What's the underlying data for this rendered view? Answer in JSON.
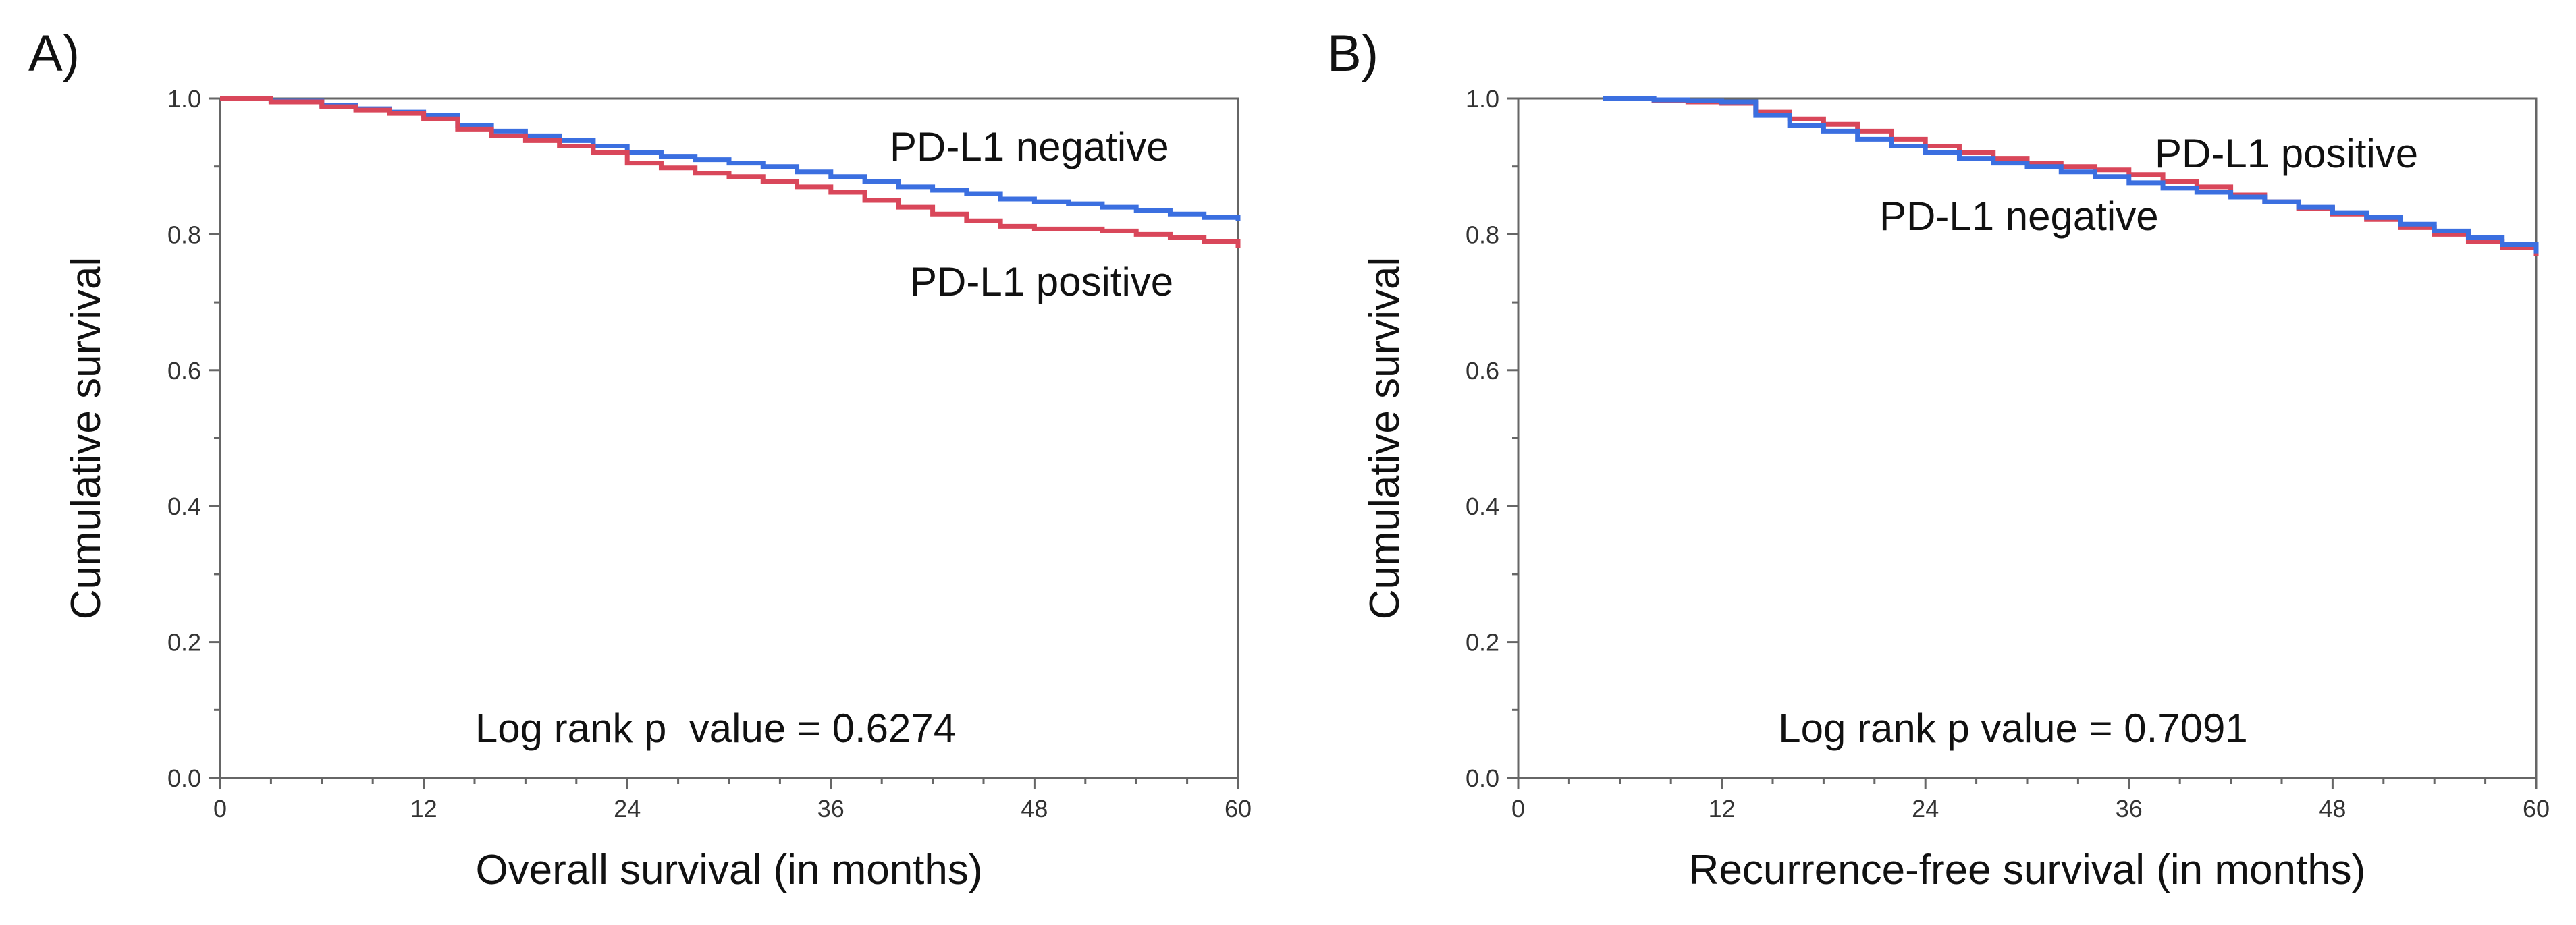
{
  "chart_data": [
    {
      "type": "line",
      "subtype": "kaplan-meier step",
      "panel_label": "A)",
      "xlabel": "Overall survival (in months)",
      "ylabel": "Cumulative survival",
      "xlim": [
        0,
        60
      ],
      "ylim": [
        0.0,
        1.0
      ],
      "x_ticks": [
        0,
        12,
        24,
        36,
        48,
        60
      ],
      "x_tick_labels": [
        "0",
        "12",
        "24",
        "36",
        "48",
        "60"
      ],
      "y_ticks": [
        0.0,
        0.2,
        0.4,
        0.6,
        0.8,
        1.0
      ],
      "y_tick_labels": [
        "0.0",
        "0.2",
        "0.4",
        "0.6",
        "0.8",
        "1.0"
      ],
      "annotation": "Log rank p  value = 0.6274",
      "series": [
        {
          "name": "PD-L1 negative",
          "label": "PD-L1 negative",
          "color": "#3b6fe0",
          "x": [
            0,
            3,
            6,
            8,
            10,
            12,
            14,
            16,
            18,
            20,
            22,
            24,
            26,
            28,
            30,
            32,
            34,
            36,
            38,
            40,
            42,
            44,
            46,
            48,
            50,
            52,
            54,
            56,
            58,
            60
          ],
          "y": [
            1.0,
            0.997,
            0.99,
            0.985,
            0.98,
            0.975,
            0.96,
            0.952,
            0.945,
            0.938,
            0.93,
            0.92,
            0.915,
            0.91,
            0.905,
            0.9,
            0.892,
            0.885,
            0.878,
            0.87,
            0.865,
            0.86,
            0.852,
            0.848,
            0.845,
            0.84,
            0.835,
            0.83,
            0.825,
            0.82
          ]
        },
        {
          "name": "PD-L1 positive",
          "label": "PD-L1 positive",
          "color": "#d9475a",
          "x": [
            0,
            3,
            6,
            8,
            10,
            12,
            14,
            16,
            18,
            20,
            22,
            24,
            26,
            28,
            30,
            32,
            34,
            36,
            38,
            40,
            42,
            44,
            46,
            48,
            50,
            52,
            54,
            56,
            58,
            60
          ],
          "y": [
            1.0,
            0.995,
            0.988,
            0.983,
            0.978,
            0.97,
            0.955,
            0.945,
            0.938,
            0.93,
            0.92,
            0.905,
            0.898,
            0.89,
            0.885,
            0.878,
            0.87,
            0.862,
            0.85,
            0.84,
            0.83,
            0.82,
            0.812,
            0.808,
            0.808,
            0.805,
            0.8,
            0.795,
            0.79,
            0.78
          ]
        }
      ]
    },
    {
      "type": "line",
      "subtype": "kaplan-meier step",
      "panel_label": "B)",
      "xlabel": "Recurrence-free survival (in months)",
      "ylabel": "Cumulative survival",
      "xlim": [
        0,
        60
      ],
      "ylim": [
        0.0,
        1.0
      ],
      "x_ticks": [
        0,
        12,
        24,
        36,
        48,
        60
      ],
      "x_tick_labels": [
        "0",
        "12",
        "24",
        "36",
        "48",
        "60"
      ],
      "y_ticks": [
        0.0,
        0.2,
        0.4,
        0.6,
        0.8,
        1.0
      ],
      "y_tick_labels": [
        "0.0",
        "0.2",
        "0.4",
        "0.6",
        "0.8",
        "1.0"
      ],
      "annotation": "Log rank p value = 0.7091",
      "series": [
        {
          "name": "PD-L1 positive",
          "label": "PD-L1 positive",
          "color": "#d9475a",
          "x": [
            5,
            8,
            10,
            12,
            14,
            16,
            18,
            20,
            22,
            24,
            26,
            28,
            30,
            32,
            34,
            36,
            38,
            40,
            42,
            44,
            46,
            48,
            50,
            52,
            54,
            56,
            58,
            60
          ],
          "y": [
            1.0,
            0.997,
            0.995,
            0.993,
            0.98,
            0.97,
            0.962,
            0.952,
            0.94,
            0.93,
            0.92,
            0.912,
            0.905,
            0.9,
            0.895,
            0.888,
            0.878,
            0.87,
            0.858,
            0.848,
            0.838,
            0.83,
            0.822,
            0.81,
            0.8,
            0.79,
            0.78,
            0.768
          ]
        },
        {
          "name": "PD-L1 negative",
          "label": "PD-L1 negative",
          "color": "#3b6fe0",
          "x": [
            5,
            8,
            10,
            12,
            14,
            16,
            18,
            20,
            22,
            24,
            26,
            28,
            30,
            32,
            34,
            36,
            38,
            40,
            42,
            44,
            46,
            48,
            50,
            52,
            54,
            56,
            58,
            60
          ],
          "y": [
            1.0,
            0.998,
            0.997,
            0.995,
            0.975,
            0.96,
            0.952,
            0.94,
            0.93,
            0.92,
            0.912,
            0.905,
            0.9,
            0.892,
            0.885,
            0.876,
            0.868,
            0.862,
            0.855,
            0.848,
            0.84,
            0.832,
            0.825,
            0.815,
            0.805,
            0.795,
            0.785,
            0.772
          ]
        }
      ]
    }
  ]
}
